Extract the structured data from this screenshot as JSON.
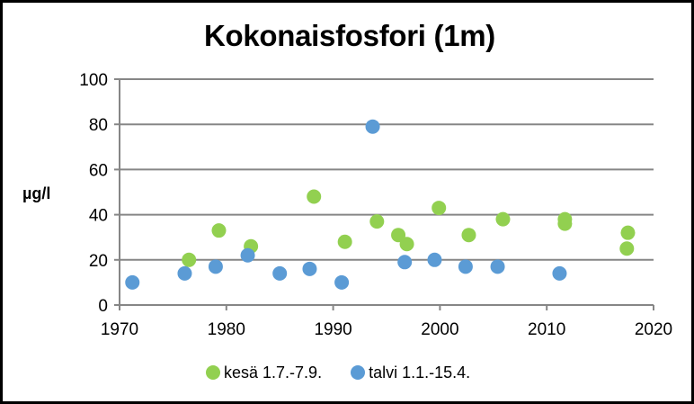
{
  "chart_data": {
    "type": "scatter",
    "title": "Kokonaisfosfori (1m)",
    "xlabel": "",
    "ylabel": "µg/l",
    "xlim": [
      1970,
      2020
    ],
    "ylim": [
      0,
      100
    ],
    "x_ticks": [
      1970,
      1980,
      1990,
      2000,
      2010,
      2020
    ],
    "y_ticks": [
      0,
      20,
      40,
      60,
      80,
      100
    ],
    "grid": "horizontal",
    "legend_position": "bottom",
    "series": [
      {
        "name": "kesä 1.7.-7.9.",
        "color": "#92D050",
        "points": [
          {
            "x": 1976.5,
            "y": 20
          },
          {
            "x": 1979.3,
            "y": 33
          },
          {
            "x": 1982.3,
            "y": 26
          },
          {
            "x": 1988.2,
            "y": 48
          },
          {
            "x": 1991.1,
            "y": 28
          },
          {
            "x": 1994.1,
            "y": 37
          },
          {
            "x": 1996.1,
            "y": 31
          },
          {
            "x": 1996.9,
            "y": 27
          },
          {
            "x": 1999.9,
            "y": 43
          },
          {
            "x": 2002.7,
            "y": 31
          },
          {
            "x": 2005.9,
            "y": 38
          },
          {
            "x": 2011.7,
            "y": 38
          },
          {
            "x": 2011.7,
            "y": 36
          },
          {
            "x": 2017.6,
            "y": 32
          },
          {
            "x": 2017.5,
            "y": 25
          }
        ]
      },
      {
        "name": "talvi 1.1.-15.4.",
        "color": "#5B9BD5",
        "points": [
          {
            "x": 1971.2,
            "y": 10
          },
          {
            "x": 1976.1,
            "y": 14
          },
          {
            "x": 1979.0,
            "y": 17
          },
          {
            "x": 1982.0,
            "y": 22
          },
          {
            "x": 1985.0,
            "y": 14
          },
          {
            "x": 1987.8,
            "y": 16
          },
          {
            "x": 1990.8,
            "y": 10
          },
          {
            "x": 1993.7,
            "y": 79
          },
          {
            "x": 1996.7,
            "y": 19
          },
          {
            "x": 1999.5,
            "y": 20
          },
          {
            "x": 2002.4,
            "y": 17
          },
          {
            "x": 2005.4,
            "y": 17
          },
          {
            "x": 2011.2,
            "y": 14
          }
        ]
      }
    ]
  },
  "title": "Kokonaisfosfori (1m)",
  "ylabel": "µg/l",
  "legend": [
    {
      "label": "kesä 1.7.-7.9.",
      "color": "#92D050"
    },
    {
      "label": "talvi 1.1.-15.4.",
      "color": "#5B9BD5"
    }
  ],
  "colors": {
    "axis": "#868686",
    "grid": "#868686",
    "frame": "#000000"
  }
}
